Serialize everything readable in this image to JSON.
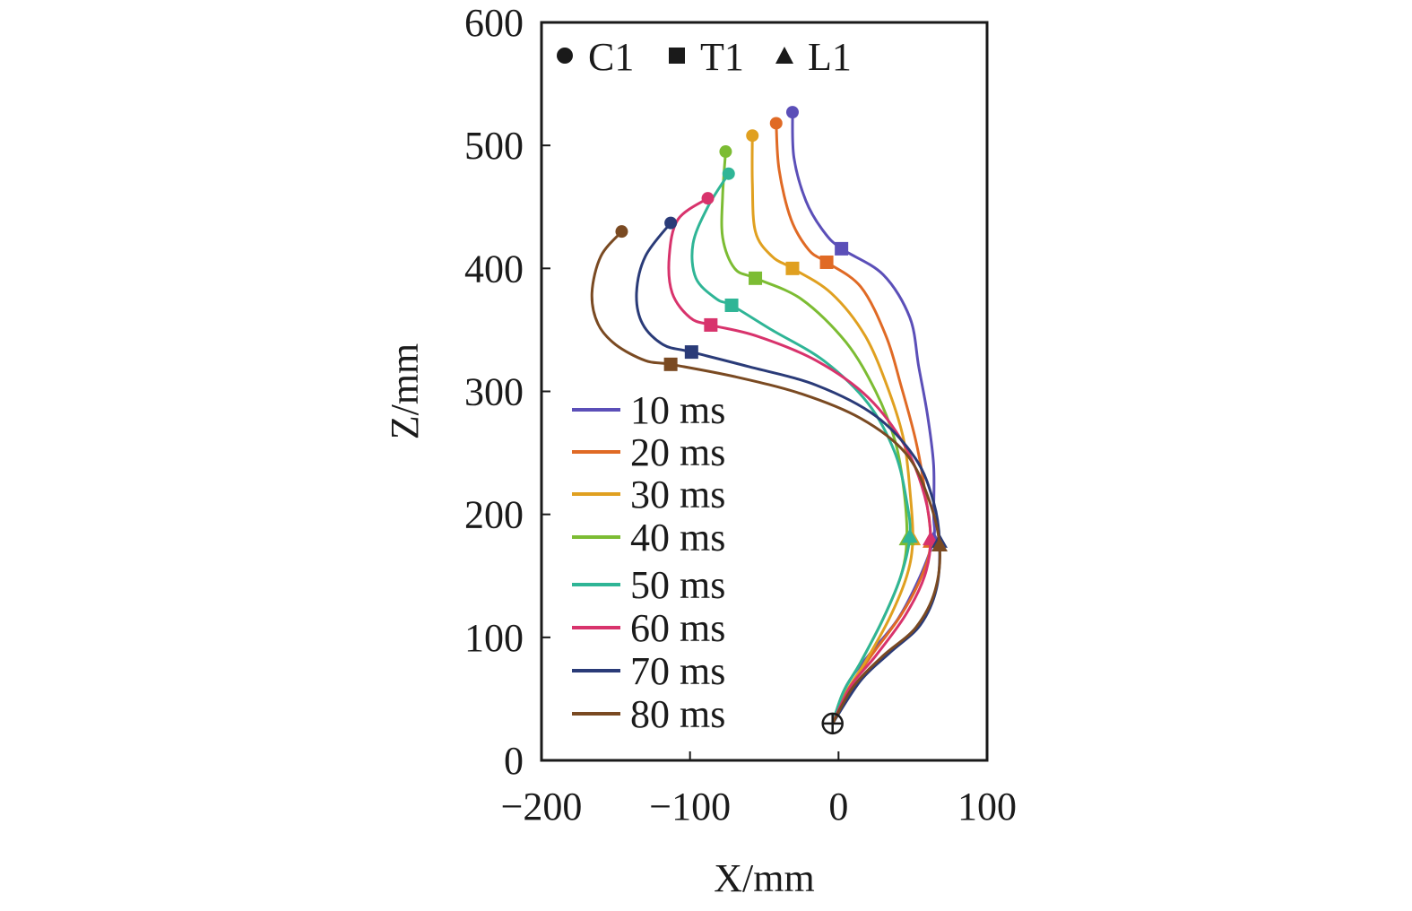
{
  "chart_data": {
    "type": "line",
    "xlabel": "X/mm",
    "ylabel": "Z/mm",
    "xlim": [
      -200,
      100
    ],
    "ylim": [
      0,
      600
    ],
    "xticks": [
      -200,
      -100,
      0,
      100
    ],
    "yticks": [
      0,
      100,
      200,
      300,
      400,
      500,
      600
    ],
    "xtick_labels": [
      "−200",
      "−100",
      "0",
      "100"
    ],
    "ytick_labels": [
      "0",
      "100",
      "200",
      "300",
      "400",
      "500",
      "600"
    ],
    "grid": false,
    "marker_legend": {
      "placement": "top-left",
      "items": [
        {
          "label": "C1",
          "marker": "circle"
        },
        {
          "label": "T1",
          "marker": "square"
        },
        {
          "label": "L1",
          "marker": "triangle"
        }
      ]
    },
    "legend_placement": "center-left",
    "origin_marker": {
      "x": -4,
      "z": 30
    },
    "series": [
      {
        "name": "10 ms",
        "color": "#5b4fb8",
        "C1": [
          -31,
          527
        ],
        "T1": [
          2,
          416
        ],
        "L1": [
          64,
          180
        ],
        "path": [
          [
            -31,
            527
          ],
          [
            -30,
            490
          ],
          [
            -22,
            455
          ],
          [
            -10,
            430
          ],
          [
            2,
            416
          ],
          [
            30,
            395
          ],
          [
            48,
            360
          ],
          [
            54,
            320
          ],
          [
            60,
            280
          ],
          [
            64,
            240
          ],
          [
            64,
            200
          ],
          [
            64,
            180
          ],
          [
            55,
            150
          ],
          [
            40,
            115
          ],
          [
            20,
            85
          ],
          [
            5,
            60
          ],
          [
            -4,
            30
          ]
        ]
      },
      {
        "name": "20 ms",
        "color": "#e06a25",
        "C1": [
          -42,
          518
        ],
        "T1": [
          -8,
          405
        ],
        "L1": [
          62,
          178
        ],
        "path": [
          [
            -42,
            518
          ],
          [
            -40,
            480
          ],
          [
            -32,
            440
          ],
          [
            -20,
            415
          ],
          [
            -8,
            405
          ],
          [
            15,
            385
          ],
          [
            32,
            345
          ],
          [
            42,
            305
          ],
          [
            52,
            260
          ],
          [
            58,
            220
          ],
          [
            62,
            178
          ],
          [
            56,
            150
          ],
          [
            42,
            118
          ],
          [
            22,
            85
          ],
          [
            5,
            55
          ],
          [
            -4,
            30
          ]
        ]
      },
      {
        "name": "30 ms",
        "color": "#e0a020",
        "C1": [
          -58,
          508
        ],
        "T1": [
          -31,
          400
        ],
        "L1": [
          50,
          180
        ],
        "path": [
          [
            -58,
            508
          ],
          [
            -58,
            470
          ],
          [
            -56,
            430
          ],
          [
            -45,
            410
          ],
          [
            -31,
            400
          ],
          [
            -5,
            380
          ],
          [
            18,
            345
          ],
          [
            34,
            300
          ],
          [
            44,
            260
          ],
          [
            48,
            220
          ],
          [
            50,
            180
          ],
          [
            46,
            150
          ],
          [
            34,
            115
          ],
          [
            18,
            80
          ],
          [
            5,
            55
          ],
          [
            -4,
            30
          ]
        ]
      },
      {
        "name": "40 ms",
        "color": "#7cbc33",
        "C1": [
          -76,
          495
        ],
        "T1": [
          -56,
          392
        ],
        "L1": [
          46,
          180
        ],
        "path": [
          [
            -76,
            495
          ],
          [
            -78,
            460
          ],
          [
            -78,
            425
          ],
          [
            -70,
            400
          ],
          [
            -56,
            392
          ],
          [
            -25,
            375
          ],
          [
            5,
            340
          ],
          [
            25,
            300
          ],
          [
            38,
            260
          ],
          [
            44,
            220
          ],
          [
            46,
            180
          ],
          [
            42,
            150
          ],
          [
            30,
            115
          ],
          [
            15,
            80
          ],
          [
            3,
            55
          ],
          [
            -4,
            30
          ]
        ]
      },
      {
        "name": "50 ms",
        "color": "#2fb596",
        "C1": [
          -74,
          477
        ],
        "T1": [
          -72,
          370
        ],
        "L1": [
          48,
          182
        ],
        "path": [
          [
            -74,
            477
          ],
          [
            -88,
            450
          ],
          [
            -98,
            420
          ],
          [
            -96,
            392
          ],
          [
            -82,
            375
          ],
          [
            -72,
            370
          ],
          [
            -45,
            350
          ],
          [
            -10,
            325
          ],
          [
            20,
            290
          ],
          [
            38,
            250
          ],
          [
            46,
            210
          ],
          [
            48,
            182
          ],
          [
            42,
            150
          ],
          [
            30,
            115
          ],
          [
            15,
            80
          ],
          [
            3,
            55
          ],
          [
            -4,
            30
          ]
        ]
      },
      {
        "name": "60 ms",
        "color": "#d8336c",
        "C1": [
          -88,
          457
        ],
        "T1": [
          -86,
          354
        ],
        "L1": [
          62,
          180
        ],
        "path": [
          [
            -88,
            457
          ],
          [
            -108,
            440
          ],
          [
            -114,
            410
          ],
          [
            -112,
            380
          ],
          [
            -100,
            360
          ],
          [
            -86,
            354
          ],
          [
            -55,
            345
          ],
          [
            -15,
            325
          ],
          [
            20,
            295
          ],
          [
            45,
            255
          ],
          [
            58,
            215
          ],
          [
            62,
            180
          ],
          [
            58,
            150
          ],
          [
            45,
            118
          ],
          [
            25,
            85
          ],
          [
            8,
            60
          ],
          [
            -4,
            30
          ]
        ]
      },
      {
        "name": "70 ms",
        "color": "#2a3b78",
        "C1": [
          -113,
          437
        ],
        "T1": [
          -99,
          332
        ],
        "L1": [
          68,
          178
        ],
        "path": [
          [
            -113,
            437
          ],
          [
            -130,
            410
          ],
          [
            -136,
            380
          ],
          [
            -132,
            355
          ],
          [
            -118,
            338
          ],
          [
            -99,
            332
          ],
          [
            -60,
            320
          ],
          [
            -15,
            305
          ],
          [
            25,
            280
          ],
          [
            52,
            245
          ],
          [
            64,
            210
          ],
          [
            68,
            178
          ],
          [
            66,
            140
          ],
          [
            55,
            110
          ],
          [
            35,
            88
          ],
          [
            15,
            65
          ],
          [
            -4,
            30
          ]
        ]
      },
      {
        "name": "80 ms",
        "color": "#7a4a22",
        "C1": [
          -146,
          430
        ],
        "T1": [
          -113,
          322
        ],
        "L1": [
          68,
          175
        ],
        "path": [
          [
            -146,
            430
          ],
          [
            -160,
            410
          ],
          [
            -166,
            380
          ],
          [
            -162,
            355
          ],
          [
            -150,
            338
          ],
          [
            -130,
            325
          ],
          [
            -113,
            322
          ],
          [
            -70,
            312
          ],
          [
            -25,
            298
          ],
          [
            15,
            278
          ],
          [
            45,
            250
          ],
          [
            60,
            215
          ],
          [
            68,
            175
          ],
          [
            65,
            138
          ],
          [
            52,
            108
          ],
          [
            30,
            85
          ],
          [
            10,
            60
          ],
          [
            -4,
            30
          ]
        ]
      }
    ]
  }
}
